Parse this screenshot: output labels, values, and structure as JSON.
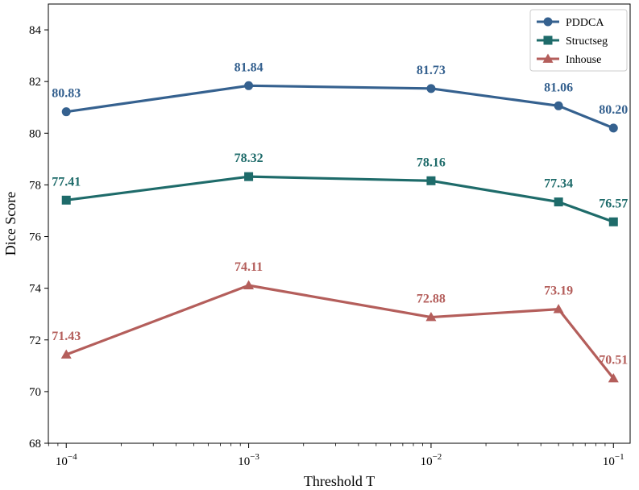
{
  "chart_data": {
    "type": "line",
    "title": "",
    "xlabel": "Threshold T",
    "ylabel": "Dice Score",
    "x_scale": "log",
    "x": [
      0.0001,
      0.001,
      0.01,
      0.05,
      0.1
    ],
    "x_ticks": [
      {
        "value": 0.0001,
        "base": "10",
        "exp": "−4"
      },
      {
        "value": 0.001,
        "base": "10",
        "exp": "−3"
      },
      {
        "value": 0.01,
        "base": "10",
        "exp": "−2"
      },
      {
        "value": 0.1,
        "base": "10",
        "exp": "−1"
      }
    ],
    "ylim": [
      68,
      85
    ],
    "y_ticks": [
      "68",
      "70",
      "72",
      "74",
      "76",
      "78",
      "80",
      "82",
      "84"
    ],
    "grid": false,
    "legend_position": "top-right",
    "series": [
      {
        "name": "PDDCA",
        "marker": "circle",
        "color": "#35618f",
        "values": [
          80.83,
          81.84,
          81.73,
          81.06,
          80.2
        ],
        "labels": [
          "80.83",
          "81.84",
          "81.73",
          "81.06",
          "80.20"
        ]
      },
      {
        "name": "Structseg",
        "marker": "square",
        "color": "#1e6b6a",
        "values": [
          77.41,
          78.32,
          78.16,
          77.34,
          76.57
        ],
        "labels": [
          "77.41",
          "78.32",
          "78.16",
          "77.34",
          "76.57"
        ]
      },
      {
        "name": "Inhouse",
        "marker": "triangle",
        "color": "#b45e5b",
        "values": [
          71.43,
          74.11,
          72.88,
          73.19,
          70.51
        ],
        "labels": [
          "71.43",
          "74.11",
          "72.88",
          "73.19",
          "70.51"
        ]
      }
    ]
  }
}
